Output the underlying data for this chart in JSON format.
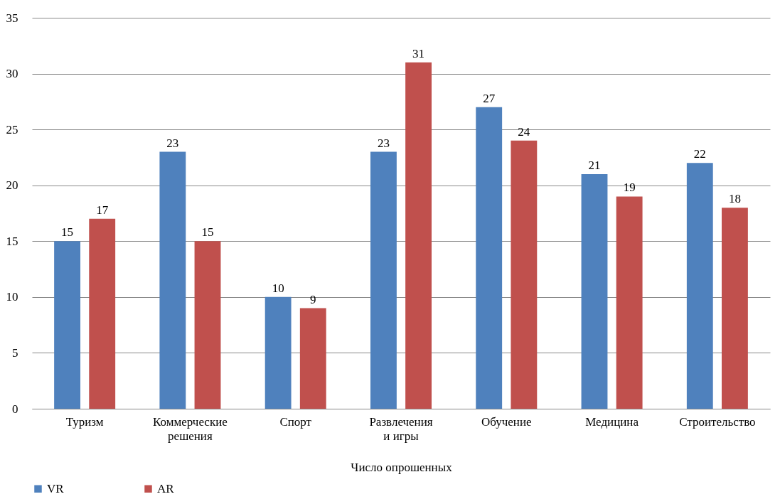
{
  "chart_data": {
    "type": "bar",
    "xlabel": "Число опрошенных",
    "categories": [
      "Туризм",
      "Коммерческие\nрешения",
      "Спорт",
      "Развлечения\nи игры",
      "Обучение",
      "Медицина",
      "Строительство"
    ],
    "series": [
      {
        "name": "VR",
        "color": "#4f81bd",
        "values": [
          15,
          23,
          10,
          23,
          27,
          21,
          22
        ]
      },
      {
        "name": "AR",
        "color": "#c0504d",
        "values": [
          17,
          15,
          9,
          31,
          24,
          19,
          18
        ]
      }
    ],
    "ylim": [
      0,
      35
    ],
    "yticks": [
      0,
      5,
      10,
      15,
      20,
      25,
      30,
      35
    ],
    "grid": "y",
    "legend": "bottom",
    "data_labels": true
  }
}
